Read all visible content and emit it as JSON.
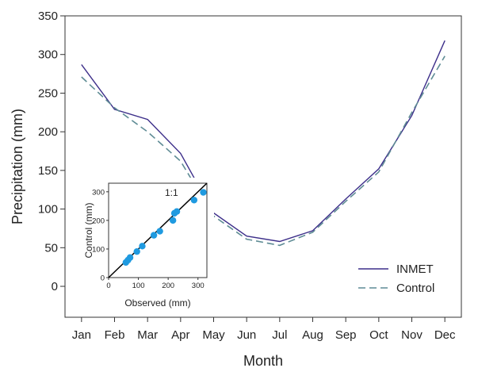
{
  "chart_data": [
    {
      "type": "line",
      "xlabel": "Month",
      "ylabel": "Precipitation (mm)",
      "categories": [
        "Jan",
        "Feb",
        "Mar",
        "Apr",
        "May",
        "Jun",
        "Jul",
        "Aug",
        "Sep",
        "Oct",
        "Nov",
        "Dec"
      ],
      "ylim": [
        -40,
        350
      ],
      "yticks": [
        0,
        50,
        100,
        150,
        200,
        250,
        300,
        350
      ],
      "grid": false,
      "legend_position": "bottom-right",
      "series": [
        {
          "name": "INMET",
          "color": "#3d2f8a",
          "style": "solid",
          "values": [
            287,
            229,
            216,
            172,
            95,
            65,
            58,
            72,
            113,
            152,
            221,
            318
          ]
        },
        {
          "name": "Control",
          "color": "#5f8c95",
          "style": "dashed",
          "values": [
            271,
            231,
            200,
            162,
            91,
            61,
            53,
            70,
            110,
            148,
            225,
            298
          ]
        }
      ]
    },
    {
      "type": "scatter",
      "xlabel": "Observed  (mm)",
      "ylabel": "Control (mm)",
      "xlim": [
        0,
        330
      ],
      "ylim": [
        0,
        330
      ],
      "xticks": [
        0,
        100,
        200,
        300
      ],
      "yticks": [
        0,
        100,
        200,
        300
      ],
      "annotation": "1:1",
      "point_color": "#1f9ae0",
      "line_color": "#000000",
      "points": [
        {
          "x": 58,
          "y": 53
        },
        {
          "x": 65,
          "y": 61
        },
        {
          "x": 72,
          "y": 70
        },
        {
          "x": 95,
          "y": 91
        },
        {
          "x": 113,
          "y": 110
        },
        {
          "x": 152,
          "y": 148
        },
        {
          "x": 172,
          "y": 162
        },
        {
          "x": 216,
          "y": 200
        },
        {
          "x": 221,
          "y": 225
        },
        {
          "x": 229,
          "y": 231
        },
        {
          "x": 287,
          "y": 271
        },
        {
          "x": 318,
          "y": 298
        }
      ]
    }
  ]
}
